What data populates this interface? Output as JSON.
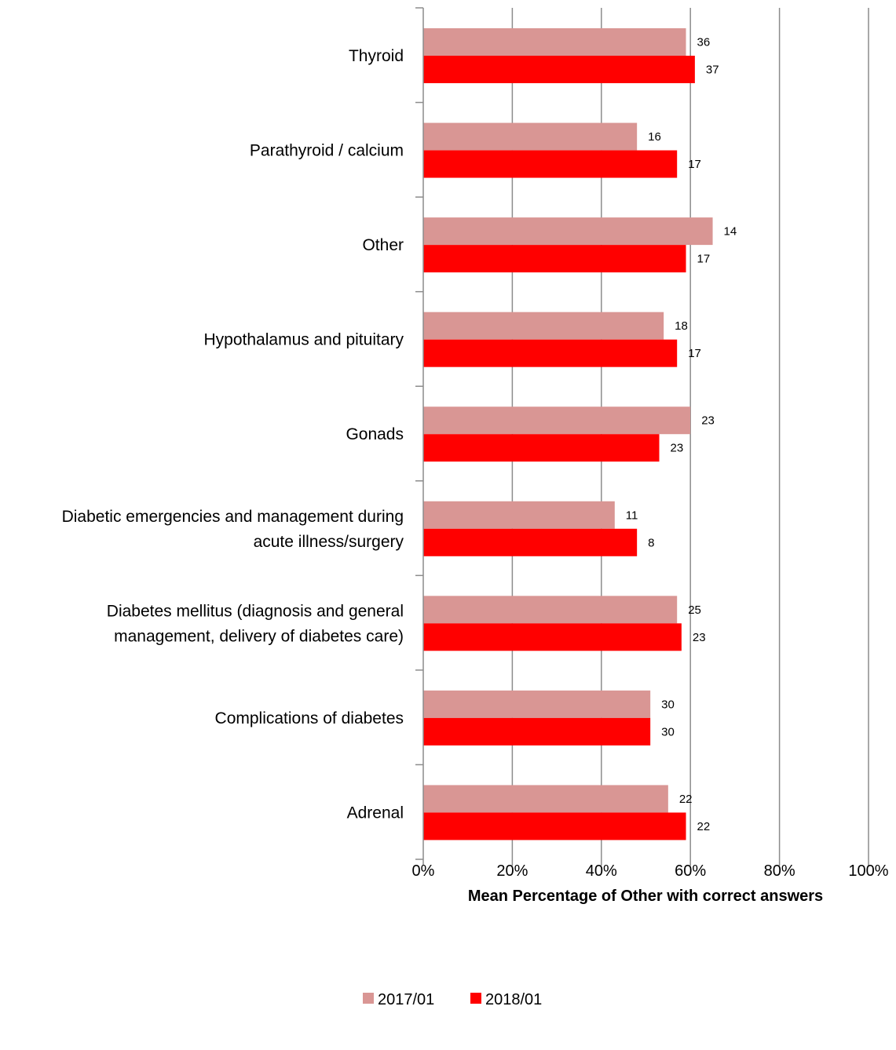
{
  "chart_data": {
    "type": "bar",
    "orientation": "horizontal",
    "categories": [
      [
        "Thyroid"
      ],
      [
        "Parathyroid / calcium"
      ],
      [
        "Other"
      ],
      [
        "Hypothalamus and pituitary"
      ],
      [
        "Gonads"
      ],
      [
        "Diabetic emergencies and management during",
        "acute illness/surgery"
      ],
      [
        "Diabetes mellitus (diagnosis and general",
        "management, delivery of diabetes care)"
      ],
      [
        "Complications of diabetes"
      ],
      [
        "Adrenal"
      ]
    ],
    "series": [
      {
        "name": "2017/01",
        "color": "#d99694",
        "values": [
          59,
          48,
          65,
          54,
          60,
          43,
          57,
          51,
          55
        ],
        "data_labels": [
          "36",
          "16",
          "14",
          "18",
          "23",
          "11",
          "25",
          "30",
          "22"
        ]
      },
      {
        "name": "2018/01",
        "color": "#ff0000",
        "values": [
          61,
          57,
          59,
          57,
          53,
          48,
          58,
          51,
          59
        ],
        "data_labels": [
          "37",
          "17",
          "17",
          "17",
          "23",
          "8",
          "23",
          "30",
          "22"
        ]
      }
    ],
    "xlim": [
      0,
      100
    ],
    "x_ticks": [
      0,
      20,
      40,
      60,
      80,
      100
    ],
    "x_tick_labels": [
      "0%",
      "20%",
      "40%",
      "60%",
      "80%",
      "100%"
    ],
    "xlabel": "Mean Percentage of Other with correct answers",
    "grid": true,
    "legend_position": "bottom"
  }
}
